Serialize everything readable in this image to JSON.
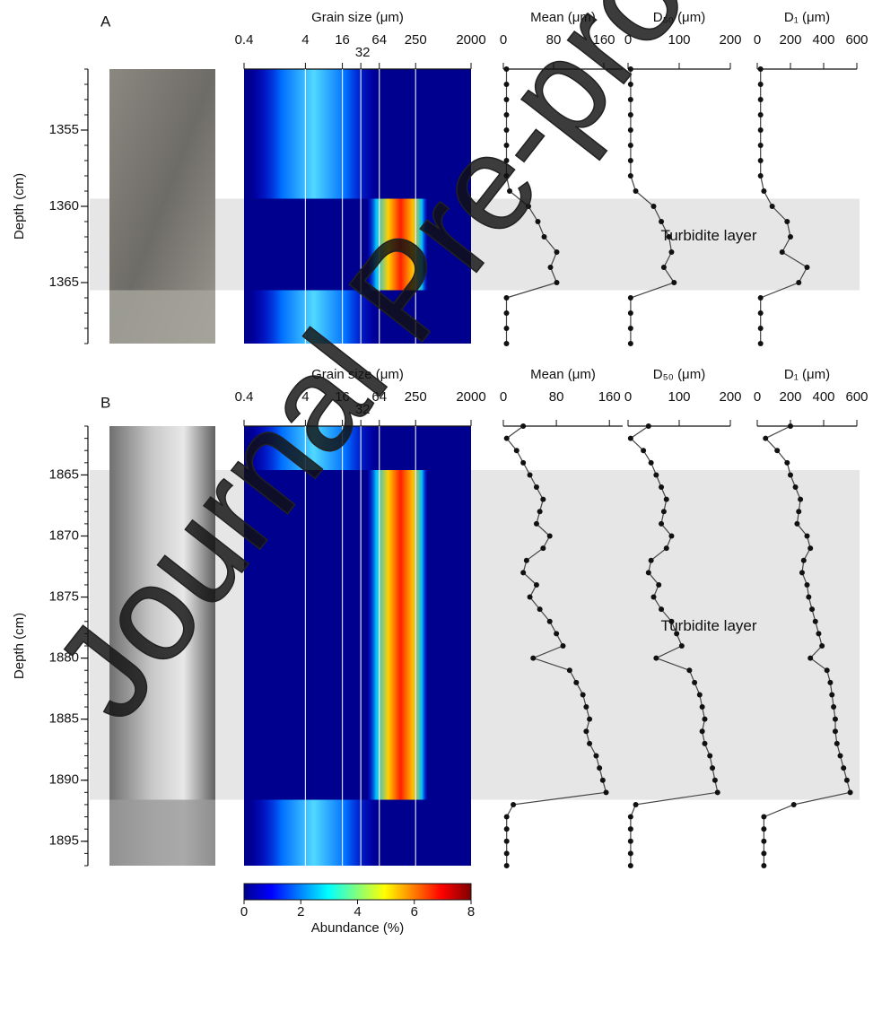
{
  "watermark": "Journal Pre-proof",
  "chart_data": [
    {
      "type": "line",
      "label": "A",
      "y_label": "Depth (cm)",
      "ylim": [
        1351,
        1369
      ],
      "yticks": [
        1355,
        1360,
        1365
      ],
      "y": [
        1351,
        1352,
        1353,
        1354,
        1355,
        1356,
        1357,
        1358,
        1359,
        1360,
        1361,
        1362,
        1363,
        1364,
        1365,
        1366,
        1367,
        1368,
        1369
      ],
      "turbidite": {
        "range": [
          1359.5,
          1365.5
        ],
        "label": "Turbidite layer"
      },
      "grain_size_axis": {
        "title": "Grain size (μm)",
        "log": true,
        "xlim": [
          0.4,
          2000
        ],
        "xticks": [
          0.4,
          4,
          16,
          32,
          64,
          250,
          2000
        ],
        "grid": true
      },
      "series": [
        {
          "name": "Mean (μm)",
          "color": "#444444",
          "xlim": [
            0,
            190
          ],
          "xticks": [
            0,
            80,
            160
          ],
          "values": [
            5,
            5,
            5,
            5,
            5,
            5,
            5,
            5,
            10,
            40,
            55,
            65,
            85,
            75,
            85,
            5,
            5,
            5,
            5
          ]
        },
        {
          "name": "D₅₀ (μm)",
          "color": "#444444",
          "xlim": [
            0,
            200
          ],
          "xticks": [
            0,
            100,
            200
          ],
          "values": [
            5,
            5,
            5,
            5,
            5,
            5,
            5,
            5,
            15,
            50,
            65,
            80,
            85,
            70,
            90,
            5,
            5,
            5,
            5
          ]
        },
        {
          "name": "D₁ (μm)",
          "color": "#444444",
          "xlim": [
            0,
            600
          ],
          "xticks": [
            0,
            200,
            400,
            600
          ],
          "values": [
            20,
            20,
            20,
            20,
            20,
            20,
            20,
            20,
            40,
            90,
            180,
            200,
            150,
            300,
            250,
            20,
            20,
            20,
            20
          ]
        }
      ]
    },
    {
      "type": "line",
      "label": "B",
      "y_label": "Depth (cm)",
      "ylim": [
        1861,
        1897
      ],
      "yticks": [
        1865,
        1870,
        1875,
        1880,
        1885,
        1890,
        1895
      ],
      "y": [
        1861,
        1862,
        1863,
        1864,
        1865,
        1866,
        1867,
        1868,
        1869,
        1870,
        1871,
        1872,
        1873,
        1874,
        1875,
        1876,
        1877,
        1878,
        1879,
        1880,
        1881,
        1882,
        1883,
        1884,
        1885,
        1886,
        1887,
        1888,
        1889,
        1890,
        1891,
        1892,
        1893,
        1894,
        1895,
        1896,
        1897
      ],
      "turbidite": {
        "range": [
          1864.6,
          1891.6
        ],
        "label": "Turbidite layer"
      },
      "grain_size_axis": {
        "title": "Grain size (μm)",
        "log": true,
        "xlim": [
          0.4,
          2000
        ],
        "xticks": [
          0.4,
          4,
          16,
          32,
          64,
          250,
          2000
        ],
        "grid": true
      },
      "series": [
        {
          "name": "Mean (μm)",
          "color": "#444444",
          "xlim": [
            0,
            180
          ],
          "xticks": [
            0,
            80,
            160
          ],
          "values": [
            30,
            5,
            20,
            30,
            40,
            50,
            60,
            55,
            50,
            70,
            60,
            35,
            30,
            50,
            40,
            55,
            70,
            80,
            90,
            45,
            100,
            110,
            120,
            125,
            130,
            125,
            130,
            140,
            145,
            150,
            155,
            15,
            5,
            5,
            5,
            5,
            5
          ]
        },
        {
          "name": "D₅₀ (μm)",
          "color": "#444444",
          "xlim": [
            0,
            200
          ],
          "xticks": [
            0,
            100,
            200
          ],
          "values": [
            40,
            5,
            30,
            45,
            55,
            65,
            75,
            70,
            65,
            85,
            75,
            45,
            40,
            60,
            50,
            65,
            85,
            95,
            105,
            55,
            120,
            130,
            140,
            145,
            150,
            145,
            150,
            160,
            165,
            170,
            175,
            15,
            5,
            5,
            5,
            5,
            5
          ]
        },
        {
          "name": "D₁ (μm)",
          "color": "#444444",
          "xlim": [
            0,
            600
          ],
          "xticks": [
            0,
            200,
            400,
            600
          ],
          "values": [
            200,
            50,
            120,
            180,
            200,
            230,
            260,
            250,
            240,
            300,
            320,
            280,
            270,
            300,
            310,
            330,
            350,
            370,
            390,
            320,
            420,
            440,
            450,
            460,
            470,
            470,
            480,
            500,
            520,
            540,
            560,
            220,
            40,
            40,
            40,
            40,
            40
          ]
        }
      ],
      "colorbar": {
        "title": "Abundance (%)",
        "colormap": "jet",
        "lim": [
          0,
          8
        ],
        "ticks": [
          0,
          2,
          4,
          6,
          8
        ]
      }
    }
  ]
}
